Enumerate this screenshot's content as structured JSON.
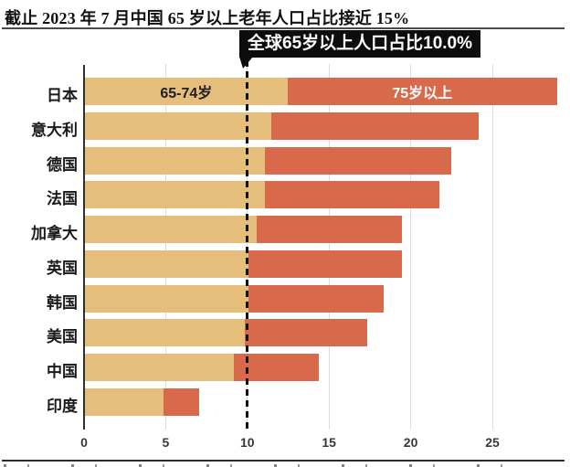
{
  "page": {
    "title": "截止 2023 年 7 月中国 65 岁以上老年人口占比接近 15%"
  },
  "callout": {
    "label": "全球65岁以上人口占比10.0%",
    "value_x": 10
  },
  "colors": {
    "segment_65_74": "#e6be7b",
    "segment_75_plus": "#d8694a",
    "callout_bg": "#0d0d0d",
    "callout_text": "#ffffff",
    "gridline": "#dcdcdc",
    "axis_line": "#2f2f2f",
    "reference_line": "#111111"
  },
  "chart_data": {
    "type": "bar",
    "orientation": "horizontal",
    "stacked": true,
    "title": "截止 2023 年 7 月中国 65 岁以上老年人口占比接近 15%",
    "categories": [
      "日本",
      "意大利",
      "德国",
      "法国",
      "加拿大",
      "英国",
      "韩国",
      "美国",
      "中国",
      "印度"
    ],
    "series": [
      {
        "name": "65-74岁",
        "color": "#e6be7b",
        "values": [
          12.4,
          11.4,
          11.0,
          11.0,
          10.5,
          10.0,
          10.0,
          9.8,
          9.1,
          4.8
        ]
      },
      {
        "name": "75岁以上",
        "color": "#d8694a",
        "values": [
          16.5,
          12.7,
          11.4,
          10.7,
          8.9,
          9.4,
          8.3,
          7.5,
          5.2,
          2.2
        ]
      }
    ],
    "totals": [
      28.9,
      24.1,
      22.4,
      21.7,
      19.4,
      19.4,
      18.3,
      17.3,
      14.3,
      7.0
    ],
    "xlabel": "",
    "ylabel": "",
    "xlim": [
      0,
      29.7
    ],
    "x_ticks": [
      0,
      5,
      10,
      15,
      20,
      25
    ],
    "grid": "vertical",
    "legend_position": "inside-first-bar",
    "reference_line": {
      "x": 10,
      "label": "全球65岁以上人口占比10.0%",
      "style": "dashed"
    }
  }
}
